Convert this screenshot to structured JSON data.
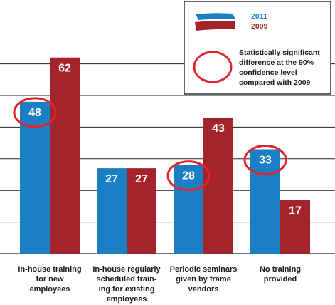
{
  "chart_data": {
    "type": "bar",
    "ylim": [
      0,
      70
    ],
    "categories": [
      [
        "In-house training",
        "for new",
        "employees"
      ],
      [
        "In-house regularly",
        "scheduled train-",
        "ing for existing",
        "employees"
      ],
      [
        "Periodic seminars",
        "given by frame",
        "vendors"
      ],
      [
        "No training",
        "provided"
      ]
    ],
    "series": [
      {
        "name": "2011",
        "values": [
          48,
          27,
          28,
          33
        ]
      },
      {
        "name": "2009",
        "values": [
          62,
          27,
          43,
          17
        ]
      }
    ],
    "significant": [
      true,
      false,
      true,
      true
    ],
    "grid": true
  },
  "legend": {
    "series_2011": "2011",
    "series_2009": "2009",
    "significance_note": [
      "Statistically significant",
      "difference at the 90%",
      "confidence level",
      "compared with 2009"
    ]
  },
  "colors": {
    "series_2011": "#1b7fc6",
    "series_2009": "#a5242c",
    "circle": "#e3242b",
    "gridline": "#222222",
    "legend_2011_text": "#1b7fc6",
    "legend_2009_text": "#a5242c",
    "legend_note_text": "#1a1a1a"
  }
}
